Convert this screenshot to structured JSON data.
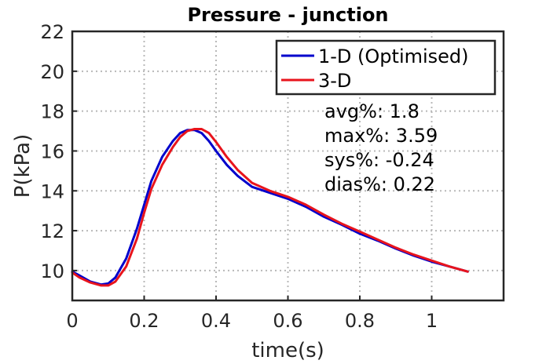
{
  "chart_data": {
    "type": "line",
    "title": "Pressure - junction",
    "xlabel": "time(s)",
    "ylabel": "P(kPa)",
    "xlim": [
      0,
      1.2
    ],
    "ylim": [
      8.5,
      22
    ],
    "xticks": [
      0,
      0.2,
      0.4,
      0.6,
      0.8,
      1
    ],
    "xtick_labels": [
      "0",
      "0.2",
      "0.4",
      "0.6",
      "0.8",
      "1"
    ],
    "yticks": [
      10,
      12,
      14,
      16,
      18,
      20,
      22
    ],
    "ytick_labels": [
      "10",
      "12",
      "14",
      "16",
      "18",
      "20",
      "22"
    ],
    "grid": true,
    "legend_position": "top-right",
    "series": [
      {
        "name": "1-D (Optimised)",
        "color": "#0000cc",
        "x": [
          0,
          0.02,
          0.05,
          0.08,
          0.1,
          0.12,
          0.15,
          0.18,
          0.2,
          0.22,
          0.25,
          0.28,
          0.3,
          0.32,
          0.34,
          0.36,
          0.38,
          0.4,
          0.43,
          0.46,
          0.5,
          0.55,
          0.6,
          0.65,
          0.7,
          0.75,
          0.8,
          0.85,
          0.9,
          0.95,
          1.0,
          1.05,
          1.1
        ],
        "y": [
          9.95,
          9.75,
          9.45,
          9.3,
          9.35,
          9.65,
          10.6,
          12.1,
          13.3,
          14.5,
          15.7,
          16.5,
          16.9,
          17.05,
          17.05,
          16.9,
          16.5,
          16.0,
          15.3,
          14.75,
          14.2,
          13.9,
          13.6,
          13.2,
          12.7,
          12.3,
          11.85,
          11.5,
          11.1,
          10.75,
          10.45,
          10.2,
          9.95
        ]
      },
      {
        "name": "3-D",
        "color": "#e8141c",
        "x": [
          0,
          0.02,
          0.05,
          0.08,
          0.1,
          0.12,
          0.15,
          0.18,
          0.2,
          0.22,
          0.25,
          0.28,
          0.3,
          0.32,
          0.34,
          0.36,
          0.38,
          0.4,
          0.43,
          0.46,
          0.5,
          0.55,
          0.6,
          0.65,
          0.7,
          0.75,
          0.8,
          0.85,
          0.9,
          0.95,
          1.0,
          1.05,
          1.1
        ],
        "y": [
          9.9,
          9.65,
          9.4,
          9.25,
          9.25,
          9.45,
          10.2,
          11.6,
          12.9,
          14.1,
          15.3,
          16.2,
          16.7,
          17.0,
          17.1,
          17.1,
          16.9,
          16.45,
          15.7,
          15.05,
          14.4,
          14.0,
          13.7,
          13.3,
          12.8,
          12.35,
          11.95,
          11.55,
          11.15,
          10.8,
          10.5,
          10.2,
          9.95
        ]
      }
    ],
    "annotations": [
      "avg%: 1.8",
      "max%: 3.59",
      "sys%: -0.24",
      "dias%: 0.22"
    ]
  }
}
